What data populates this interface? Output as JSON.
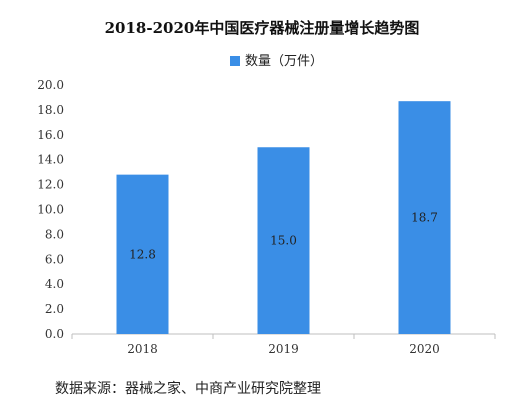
{
  "chart_data": {
    "type": "bar",
    "title": "2018-2020年中国医疗器械注册量增长趋势图",
    "categories": [
      "2018",
      "2019",
      "2020"
    ],
    "series": [
      {
        "name": "数量（万件）",
        "values": [
          12.8,
          15.0,
          18.7
        ],
        "labels": [
          "12.8",
          "15.0",
          "18.7"
        ]
      }
    ],
    "yticks": [
      "0.0",
      "2.0",
      "4.0",
      "6.0",
      "8.0",
      "10.0",
      "12.0",
      "14.0",
      "16.0",
      "18.0",
      "20.0"
    ],
    "ylim": [
      0,
      20
    ],
    "xlabel": "",
    "ylabel": "",
    "grid": false,
    "legend_position": "top",
    "bar_color": "#3a8ee6"
  },
  "source_text": "数据来源：器械之家、中商产业研究院整理"
}
